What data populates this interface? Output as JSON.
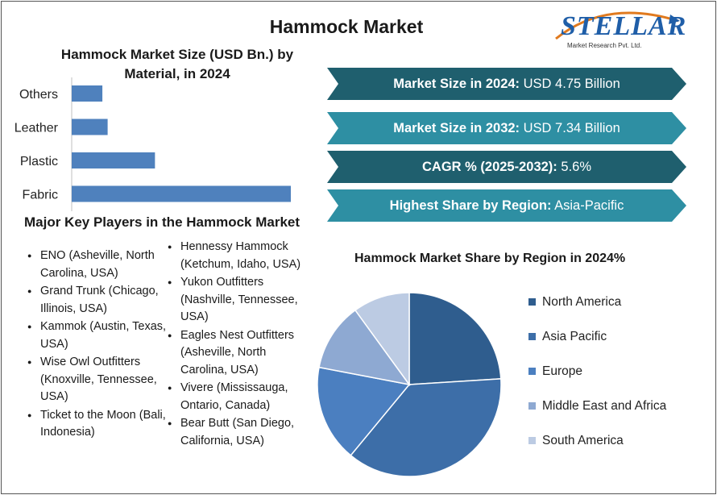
{
  "header": {
    "title": "Hammock Market",
    "logo_text": "STELLAR",
    "logo_sub": "Market Research Pvt. Ltd."
  },
  "colors": {
    "bar": "#4f81bd",
    "banner_dark": "#1f5f6e",
    "banner_light": "#2e8fa3",
    "pie": [
      "#2f5d8e",
      "#3d6ea8",
      "#4b7fc0",
      "#8ea9d2",
      "#bccbe3"
    ]
  },
  "banners": [
    {
      "label": "Market Size in 2024:",
      "value": "USD 4.75 Billion"
    },
    {
      "label": "Market Size in 2032:",
      "value": "USD 7.34 Billion"
    },
    {
      "label": "CAGR % (2025-2032):",
      "value": "5.6%"
    },
    {
      "label": "Highest Share by Region:",
      "value": "Asia-Pacific"
    }
  ],
  "players": {
    "title": "Major Key Players in the Hammock Market",
    "col1": [
      "ENO (Asheville, North Carolina, USA)",
      "Grand Trunk (Chicago, Illinois, USA)",
      "Kammok (Austin, Texas, USA)",
      "Wise Owl Outfitters (Knoxville, Tennessee, USA)",
      "Ticket to the Moon (Bali, Indonesia)"
    ],
    "col2": [
      "Hennessy Hammock (Ketchum, Idaho, USA)",
      "Yukon Outfitters (Nashville, Tennessee, USA)",
      "Eagles Nest Outfitters (Asheville, North Carolina, USA)",
      "Vivere (Mississauga, Ontario, Canada)",
      "Bear Butt (San Diego, California, USA)"
    ]
  },
  "chart_data": [
    {
      "type": "bar",
      "orientation": "horizontal",
      "title": "Hammock Market Size (USD Bn.) by Material, in 2024",
      "categories": [
        "Others",
        "Leather",
        "Plastic",
        "Fabric"
      ],
      "values": [
        0.35,
        0.41,
        0.95,
        2.5
      ],
      "xlim": [
        0,
        2.5
      ],
      "grid": false
    },
    {
      "type": "pie",
      "title": "Hammock Market Share by Region in 2024%",
      "labels": [
        "North America",
        "Asia Pacific",
        "Europe",
        "Middle East and Africa",
        "South America"
      ],
      "values": [
        24,
        37,
        17,
        12,
        10
      ],
      "legend": "right"
    }
  ]
}
